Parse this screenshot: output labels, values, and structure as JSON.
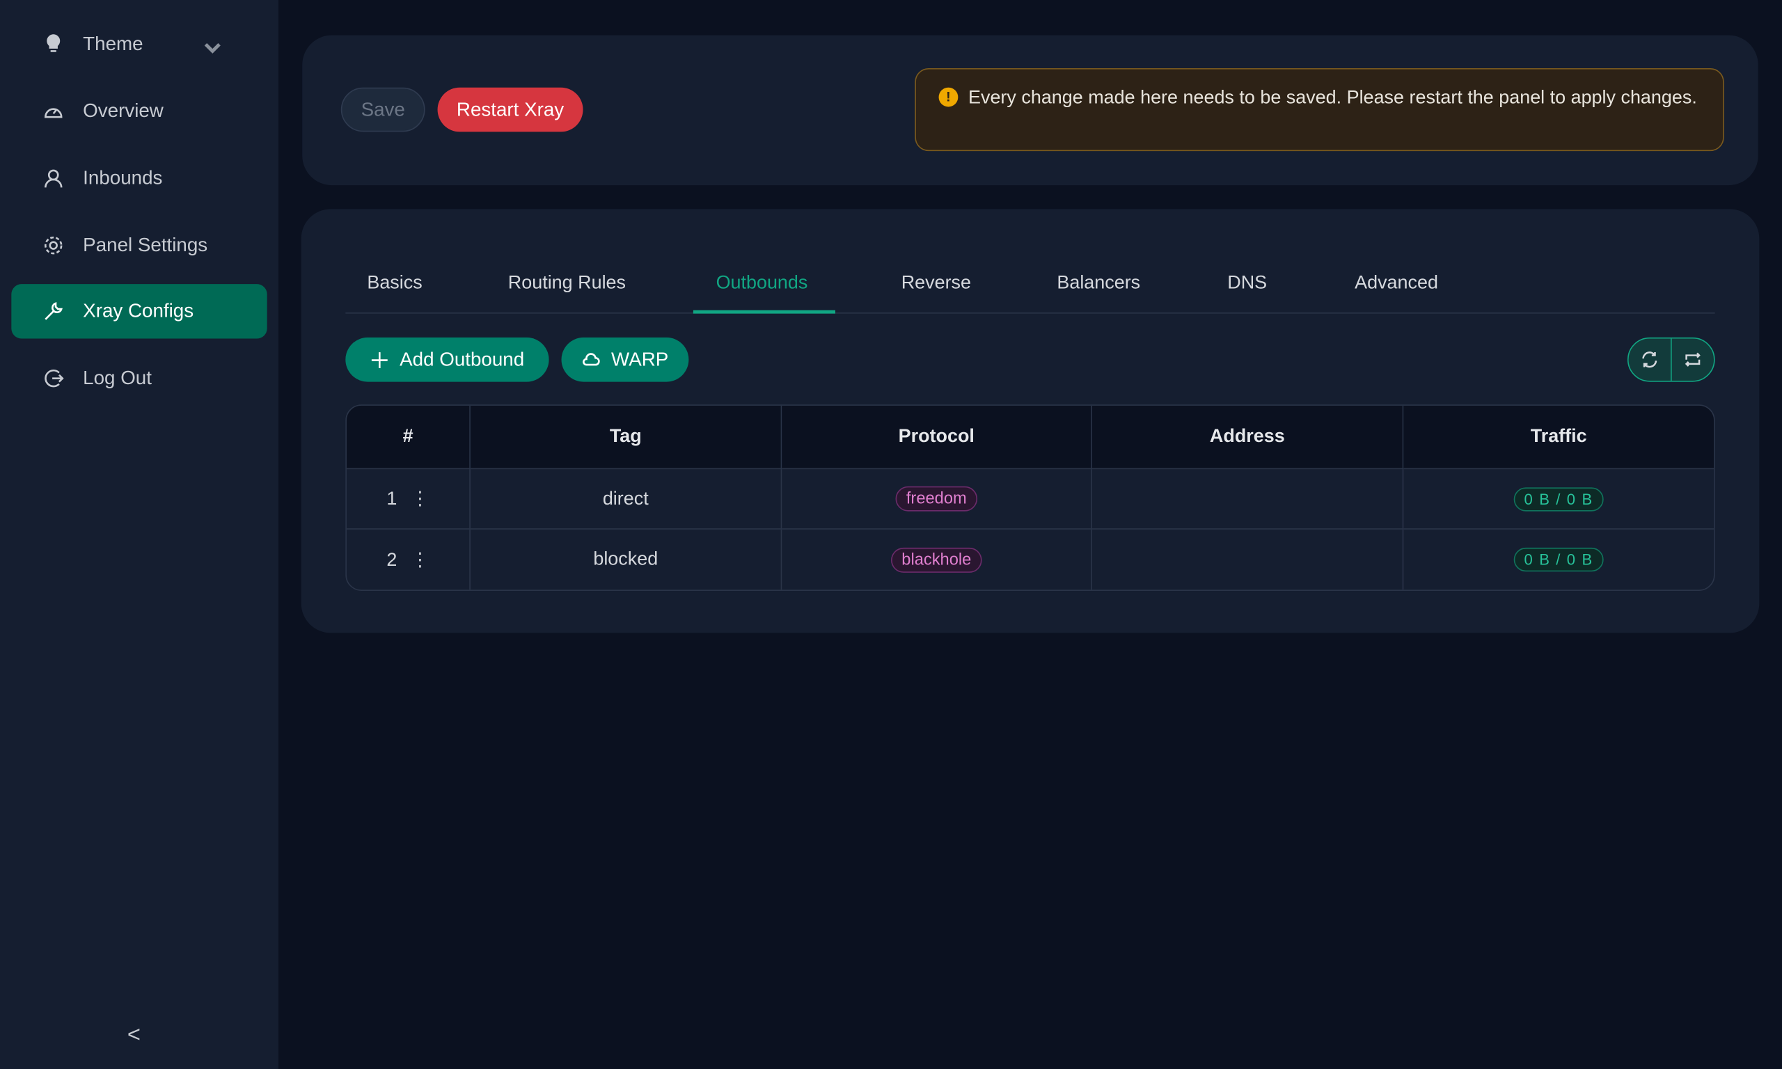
{
  "sidebar": {
    "items": [
      {
        "label": "Theme",
        "icon": "bulb-icon"
      },
      {
        "label": "Overview",
        "icon": "dashboard-icon"
      },
      {
        "label": "Inbounds",
        "icon": "user-icon"
      },
      {
        "label": "Panel Settings",
        "icon": "gear-icon"
      },
      {
        "label": "Xray Configs",
        "icon": "wrench-icon",
        "active": true
      },
      {
        "label": "Log Out",
        "icon": "logout-icon"
      }
    ],
    "collapse": "<"
  },
  "toolbar": {
    "save": "Save",
    "restart": "Restart Xray"
  },
  "alert": {
    "text": "Every change made here needs to be saved. Please restart the panel to apply changes."
  },
  "tabs": [
    "Basics",
    "Routing Rules",
    "Outbounds",
    "Reverse",
    "Balancers",
    "DNS",
    "Advanced"
  ],
  "active_tab": "Outbounds",
  "actions": {
    "add": "Add Outbound",
    "warp": "WARP"
  },
  "table": {
    "headers": [
      "#",
      "Tag",
      "Protocol",
      "Address",
      "Traffic"
    ],
    "rows": [
      {
        "num": "1",
        "tag": "direct",
        "protocol": "freedom",
        "address": "",
        "traffic": "0 B / 0 B"
      },
      {
        "num": "2",
        "tag": "blocked",
        "protocol": "blackhole",
        "address": "",
        "traffic": "0 B / 0 B"
      }
    ]
  },
  "colors": {
    "accent": "#00806a",
    "danger": "#d6363f",
    "warning": "#f0a800"
  }
}
